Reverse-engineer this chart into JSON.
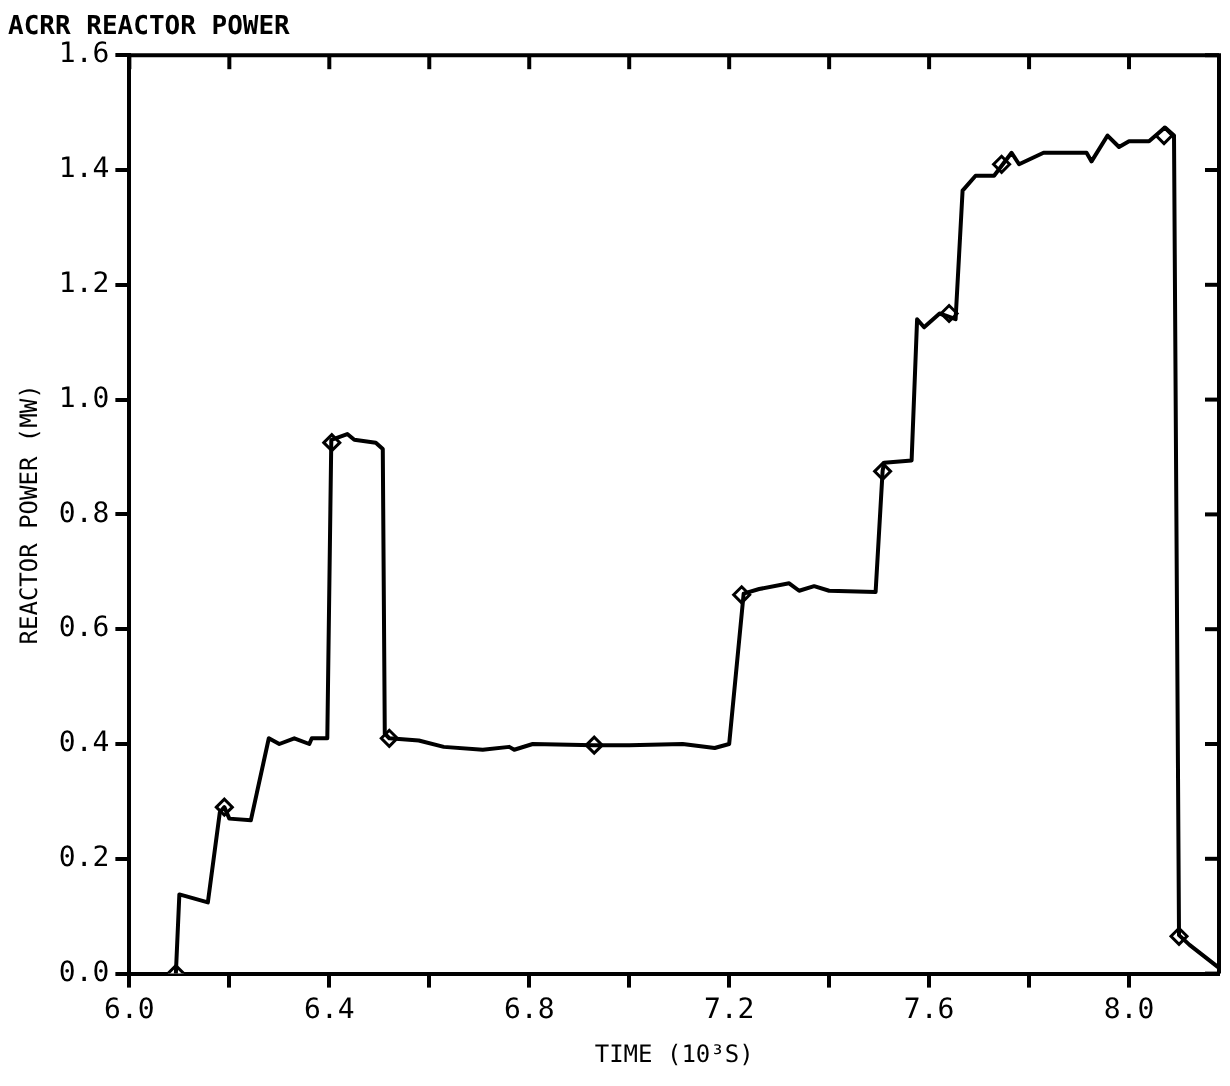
{
  "chart_data": {
    "type": "line",
    "title": "ACRR REACTOR POWER",
    "xlabel": "TIME (10³S)",
    "ylabel": "REACTOR POWER (MW)",
    "xlim": [
      6.0,
      8.18
    ],
    "xticks": [
      {
        "value": 6,
        "label": "6.0"
      },
      {
        "value": 6.2,
        "label": null
      },
      6.4,
      {
        "value": 6.6,
        "label": null
      },
      6.8,
      {
        "value": 7.0,
        "label": null
      },
      7.2,
      {
        "value": 7.4,
        "label": null
      },
      7.6,
      {
        "value": 7.8,
        "label": null
      },
      {
        "value": 8,
        "label": "8.0"
      }
    ],
    "ylim": [
      0.0,
      1.6
    ],
    "yticks": [
      {
        "value": 0,
        "label": "0.0"
      },
      0.2,
      0.4,
      0.6,
      0.8,
      {
        "value": 1,
        "label": "1.0"
      },
      1.2,
      1.4,
      1.6
    ],
    "grid": false,
    "legend": false,
    "line_style": "solid",
    "series": [
      {
        "marker": "none",
        "color": "#000000",
        "x": [
          6.093,
          6.1,
          6.157,
          6.181,
          6.19,
          6.2,
          6.243,
          6.279,
          6.3,
          6.33,
          6.36,
          6.365,
          6.396,
          6.404,
          6.436,
          6.45,
          6.493,
          6.507,
          6.511,
          6.52,
          6.579,
          6.629,
          6.707,
          6.76,
          6.77,
          6.807,
          6.929,
          7.0,
          7.107,
          7.171,
          7.2,
          7.229,
          7.26,
          7.32,
          7.34,
          7.37,
          7.4,
          7.493,
          7.507,
          7.51,
          7.565,
          7.576,
          7.59,
          7.621,
          7.653,
          7.667,
          7.693,
          7.73,
          7.765,
          7.78,
          7.829,
          7.915,
          7.925,
          7.957,
          7.98,
          8.0,
          8.04,
          8.072,
          8.09,
          8.1,
          8.121,
          8.18
        ],
        "values": [
          0,
          0.138,
          0.124,
          0.281,
          0.29,
          0.27,
          0.267,
          0.41,
          0.4,
          0.41,
          0.4,
          0.41,
          0.41,
          0.93,
          0.94,
          0.93,
          0.925,
          0.914,
          0.418,
          0.41,
          0.406,
          0.395,
          0.39,
          0.395,
          0.39,
          0.4,
          0.398,
          0.398,
          0.4,
          0.393,
          0.4,
          0.662,
          0.67,
          0.68,
          0.667,
          0.675,
          0.667,
          0.665,
          0.876,
          0.89,
          0.894,
          1.14,
          1.126,
          1.15,
          1.14,
          1.364,
          1.39,
          1.39,
          1.43,
          1.41,
          1.43,
          1.43,
          1.415,
          1.46,
          1.44,
          1.45,
          1.45,
          1.474,
          1.46,
          0.067,
          0.05,
          0.01
        ]
      },
      {
        "type": "scatter",
        "marker": "diamond",
        "color": "#000000",
        "x": [
          6.093,
          6.19,
          6.405,
          6.52,
          6.93,
          7.225,
          7.507,
          7.64,
          7.745,
          8.07,
          8.1
        ],
        "values": [
          0,
          0.29,
          0.925,
          0.41,
          0.398,
          0.66,
          0.875,
          1.15,
          1.41,
          1.46,
          0.065
        ]
      }
    ]
  }
}
